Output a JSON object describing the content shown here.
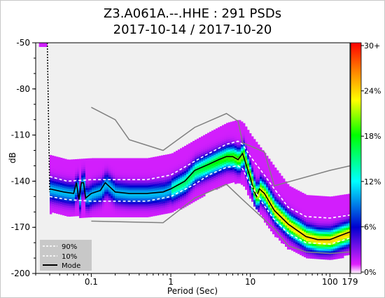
{
  "chart_data": {
    "type": "heatmap",
    "title": "Z3.A061A.--.HHE : 291 PSDs",
    "subtitle": "2017-10-14 / 2017-10-20",
    "xlabel": "Period (Sec)",
    "ylabel": "dB",
    "x_scale": "log",
    "xlim": [
      0.02,
      179
    ],
    "ylim": [
      -200,
      -50
    ],
    "x_ticks": [
      {
        "value": 0.1,
        "label": "0.1"
      },
      {
        "value": 1,
        "label": "1"
      },
      {
        "value": 10,
        "label": "10"
      },
      {
        "value": 100,
        "label": "100"
      },
      {
        "value": 179,
        "label": "179"
      }
    ],
    "y_ticks": [
      {
        "value": -50,
        "label": "-50"
      },
      {
        "value": -80,
        "label": "-80"
      },
      {
        "value": -110,
        "label": "-110"
      },
      {
        "value": -140,
        "label": "-140"
      },
      {
        "value": -170,
        "label": "-170"
      },
      {
        "value": -200,
        "label": "-200"
      }
    ],
    "colorbar": {
      "ticks": [
        "0%",
        "6%",
        "12%",
        "18%",
        "24%",
        "30+"
      ],
      "colors": [
        "#ffffff",
        "#e020ff",
        "#0000d0",
        "#00ffff",
        "#00ff00",
        "#ffff00",
        "#ff8000",
        "#ff0000"
      ]
    },
    "legend": {
      "placement": "bottom-left",
      "entries": [
        {
          "label": "90%",
          "style": "dashed",
          "color": "#ffffff"
        },
        {
          "label": "10%",
          "style": "dashed",
          "color": "#ffffff"
        },
        {
          "label": "Mode",
          "style": "solid",
          "color": "#000000"
        }
      ]
    },
    "series": [
      {
        "name": "Mode",
        "points": [
          [
            0.03,
            -145
          ],
          [
            0.045,
            -147
          ],
          [
            0.06,
            -148
          ],
          [
            0.065,
            -141
          ],
          [
            0.07,
            -152
          ],
          [
            0.075,
            -141
          ],
          [
            0.08,
            -141
          ],
          [
            0.085,
            -151
          ],
          [
            0.1,
            -148
          ],
          [
            0.13,
            -146
          ],
          [
            0.15,
            -141
          ],
          [
            0.2,
            -147
          ],
          [
            0.3,
            -148
          ],
          [
            0.5,
            -148
          ],
          [
            0.8,
            -147
          ],
          [
            1,
            -145
          ],
          [
            1.5,
            -140
          ],
          [
            2,
            -133
          ],
          [
            3,
            -129
          ],
          [
            4,
            -126
          ],
          [
            5,
            -124
          ],
          [
            6,
            -124
          ],
          [
            7,
            -126
          ],
          [
            8,
            -122
          ],
          [
            10,
            -138
          ],
          [
            11,
            -146
          ],
          [
            12,
            -150
          ],
          [
            13,
            -145
          ],
          [
            15,
            -148
          ],
          [
            20,
            -159
          ],
          [
            30,
            -168
          ],
          [
            50,
            -176
          ],
          [
            70,
            -178
          ],
          [
            100,
            -178
          ],
          [
            140,
            -175
          ],
          [
            179,
            -173
          ]
        ]
      },
      {
        "name": "90%",
        "points": [
          [
            0.03,
            -137
          ],
          [
            0.05,
            -140
          ],
          [
            0.1,
            -139
          ],
          [
            0.2,
            -139
          ],
          [
            0.5,
            -139
          ],
          [
            1,
            -136
          ],
          [
            2,
            -127
          ],
          [
            3,
            -122
          ],
          [
            5,
            -116
          ],
          [
            7,
            -114
          ],
          [
            8,
            -116
          ],
          [
            10,
            -124
          ],
          [
            15,
            -136
          ],
          [
            20,
            -145
          ],
          [
            30,
            -157
          ],
          [
            50,
            -163
          ],
          [
            100,
            -164
          ],
          [
            179,
            -162
          ]
        ]
      },
      {
        "name": "10%",
        "points": [
          [
            0.03,
            -150
          ],
          [
            0.05,
            -152
          ],
          [
            0.1,
            -153
          ],
          [
            0.2,
            -153
          ],
          [
            0.5,
            -153
          ],
          [
            1,
            -150
          ],
          [
            2,
            -142
          ],
          [
            3,
            -136
          ],
          [
            5,
            -131
          ],
          [
            7,
            -130
          ],
          [
            8,
            -132
          ],
          [
            10,
            -142
          ],
          [
            15,
            -156
          ],
          [
            20,
            -165
          ],
          [
            30,
            -174
          ],
          [
            50,
            -180
          ],
          [
            100,
            -181
          ],
          [
            179,
            -177
          ]
        ]
      },
      {
        "name": "",
        "color": "#808080",
        "points": [
          [
            0.1,
            -92
          ],
          [
            0.2,
            -100
          ],
          [
            0.3,
            -113
          ],
          [
            0.8,
            -120
          ],
          [
            2,
            -105
          ],
          [
            5,
            -96
          ],
          [
            7,
            -101
          ],
          [
            8,
            -115
          ],
          [
            15,
            -121
          ],
          [
            20,
            -143
          ],
          [
            100,
            -133
          ],
          [
            179,
            -130
          ]
        ]
      },
      {
        "name": "",
        "color": "#808080",
        "points": [
          [
            0.1,
            -166
          ],
          [
            0.8,
            -167
          ],
          [
            2,
            -151
          ],
          [
            5,
            -142
          ],
          [
            8,
            -152
          ],
          [
            15,
            -165
          ],
          [
            20,
            -171
          ],
          [
            30,
            -182
          ],
          [
            50,
            -186
          ],
          [
            100,
            -187
          ],
          [
            179,
            -186
          ]
        ]
      }
    ]
  }
}
